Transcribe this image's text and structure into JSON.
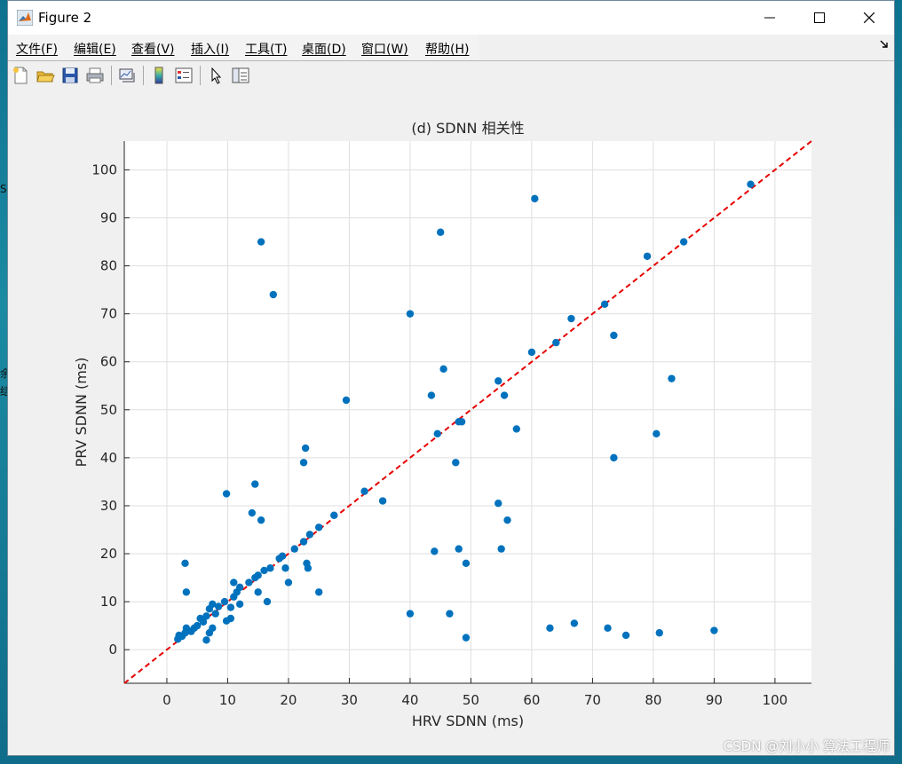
{
  "window": {
    "title": "Figure 2",
    "minimize_icon": "minimize-icon",
    "maximize_icon": "maximize-icon",
    "close_icon": "close-icon"
  },
  "desktop": {
    "fragments": [
      "S",
      "余",
      "结"
    ]
  },
  "menu": {
    "items": [
      "文件(F)",
      "编辑(E)",
      "查看(V)",
      "插入(I)",
      "工具(T)",
      "桌面(D)",
      "窗口(W)",
      "帮助(H)"
    ],
    "overflow_icon": "dock-arrow-icon"
  },
  "toolbar": {
    "buttons": [
      "new-figure-icon",
      "open-file-icon",
      "save-icon",
      "print-icon",
      "link-plot-icon",
      "colorbar-icon",
      "legend-icon",
      "pointer-icon",
      "property-inspector-icon"
    ]
  },
  "chart_data": {
    "type": "scatter",
    "title": "(d) SDNN 相关性",
    "xlabel": "HRV SDNN (ms)",
    "ylabel": "PRV SDNN (ms)",
    "xlim": [
      -7,
      106
    ],
    "ylim": [
      -7,
      106
    ],
    "xticks": [
      0,
      10,
      20,
      30,
      40,
      50,
      60,
      70,
      80,
      90,
      100
    ],
    "yticks": [
      0,
      10,
      20,
      30,
      40,
      50,
      60,
      70,
      80,
      90,
      100
    ],
    "grid": true,
    "marker_color": "#0072bd",
    "reference_line": {
      "from": [
        -7,
        -7
      ],
      "to": [
        106,
        106
      ],
      "color": "#e60000",
      "style": "dashed"
    },
    "points": [
      [
        1.8,
        2.2
      ],
      [
        2.0,
        3.0
      ],
      [
        2.5,
        2.8
      ],
      [
        3.0,
        3.5
      ],
      [
        3.5,
        4.0
      ],
      [
        3.2,
        4.5
      ],
      [
        4.0,
        3.8
      ],
      [
        4.5,
        4.5
      ],
      [
        5.0,
        5.0
      ],
      [
        5.5,
        6.5
      ],
      [
        6.0,
        5.8
      ],
      [
        6.5,
        7.0
      ],
      [
        7.0,
        8.5
      ],
      [
        7.5,
        9.5
      ],
      [
        8.0,
        7.5
      ],
      [
        8.5,
        9.0
      ],
      [
        9.5,
        10.0
      ],
      [
        10.5,
        8.8
      ],
      [
        11.0,
        11.0
      ],
      [
        11.5,
        12.0
      ],
      [
        12.0,
        13.0
      ],
      [
        13.5,
        14.0
      ],
      [
        14.5,
        15.0
      ],
      [
        15.0,
        15.5
      ],
      [
        16.0,
        16.5
      ],
      [
        17.0,
        17.0
      ],
      [
        18.5,
        19.0
      ],
      [
        19.0,
        19.5
      ],
      [
        21.0,
        21.0
      ],
      [
        22.5,
        22.5
      ],
      [
        23.5,
        24.0
      ],
      [
        25.0,
        25.5
      ],
      [
        27.5,
        28.0
      ],
      [
        32.5,
        33.0
      ],
      [
        35.5,
        31.0
      ],
      [
        48.0,
        47.5
      ],
      [
        60.0,
        62.0
      ],
      [
        64.0,
        64.0
      ],
      [
        66.5,
        69.0
      ],
      [
        72.0,
        72.0
      ],
      [
        79.0,
        82.0
      ],
      [
        85.0,
        85.0
      ],
      [
        96.0,
        97.0
      ],
      [
        3.0,
        18.0
      ],
      [
        3.2,
        12.0
      ],
      [
        6.5,
        2.0
      ],
      [
        7.0,
        3.5
      ],
      [
        7.5,
        4.5
      ],
      [
        9.8,
        6.0
      ],
      [
        10.5,
        6.5
      ],
      [
        11.0,
        14.0
      ],
      [
        12.0,
        9.5
      ],
      [
        14.0,
        28.5
      ],
      [
        14.5,
        34.5
      ],
      [
        15.0,
        12.0
      ],
      [
        15.5,
        27.0
      ],
      [
        15.5,
        85.0
      ],
      [
        16.5,
        10.0
      ],
      [
        17.5,
        74.0
      ],
      [
        19.5,
        17.0
      ],
      [
        20.0,
        14.0
      ],
      [
        22.5,
        39.0
      ],
      [
        22.8,
        42.0
      ],
      [
        23.0,
        18.0
      ],
      [
        23.2,
        17.0
      ],
      [
        25.0,
        12.0
      ],
      [
        29.5,
        52.0
      ],
      [
        9.8,
        32.5
      ],
      [
        40.0,
        70.0
      ],
      [
        40.0,
        7.5
      ],
      [
        43.5,
        53.0
      ],
      [
        44.0,
        20.5
      ],
      [
        44.5,
        45.0
      ],
      [
        45.0,
        87.0
      ],
      [
        45.5,
        58.5
      ],
      [
        46.5,
        7.5
      ],
      [
        47.5,
        39.0
      ],
      [
        48.0,
        21.0
      ],
      [
        48.5,
        47.5
      ],
      [
        49.2,
        18.0
      ],
      [
        49.2,
        2.5
      ],
      [
        54.5,
        56.0
      ],
      [
        54.5,
        30.5
      ],
      [
        55.0,
        21.0
      ],
      [
        55.5,
        53.0
      ],
      [
        56.0,
        27.0
      ],
      [
        57.5,
        46.0
      ],
      [
        60.5,
        94.0
      ],
      [
        63.0,
        4.5
      ],
      [
        67.0,
        5.5
      ],
      [
        72.5,
        4.5
      ],
      [
        73.5,
        65.5
      ],
      [
        73.5,
        40.0
      ],
      [
        75.5,
        3.0
      ],
      [
        80.5,
        45.0
      ],
      [
        81.0,
        3.5
      ],
      [
        83.0,
        56.5
      ],
      [
        90.0,
        4.0
      ]
    ]
  },
  "watermark": "CSDN @刘小小 算法工程师"
}
